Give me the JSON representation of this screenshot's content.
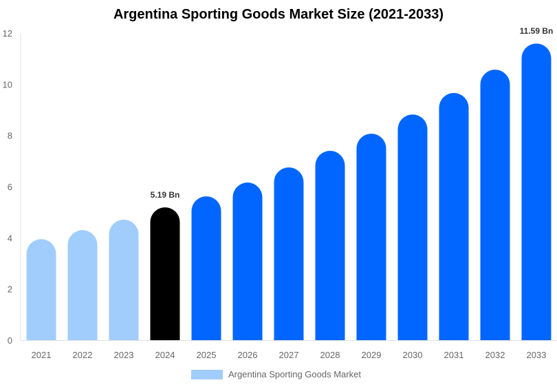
{
  "chart_data": {
    "type": "bar",
    "title": "Argentina Sporting Goods Market Size (2021-2033)",
    "categories": [
      "2021",
      "2022",
      "2023",
      "2024",
      "2025",
      "2026",
      "2027",
      "2028",
      "2029",
      "2030",
      "2031",
      "2032",
      "2033"
    ],
    "series": [
      {
        "name": "Argentina Sporting Goods Market",
        "values": [
          3.95,
          4.3,
          4.71,
          5.19,
          5.62,
          6.16,
          6.75,
          7.4,
          8.07,
          8.82,
          9.66,
          10.57,
          11.59
        ]
      }
    ],
    "bar_colors": [
      "#a0cdfc",
      "#a0cdfc",
      "#a0cdfc",
      "#000000",
      "#0066ff",
      "#0066ff",
      "#0066ff",
      "#0066ff",
      "#0066ff",
      "#0066ff",
      "#0066ff",
      "#0066ff",
      "#0066ff"
    ],
    "data_labels": {
      "2024": "5.19 Bn",
      "2033": "11.59 Bn"
    },
    "yticks": [
      0,
      2,
      4,
      6,
      8,
      10,
      12
    ],
    "ylim": [
      0,
      12
    ],
    "xlabel": "",
    "ylabel": "",
    "grid": false,
    "legend_position": "bottom",
    "legend_color": "#a0cdfc"
  }
}
